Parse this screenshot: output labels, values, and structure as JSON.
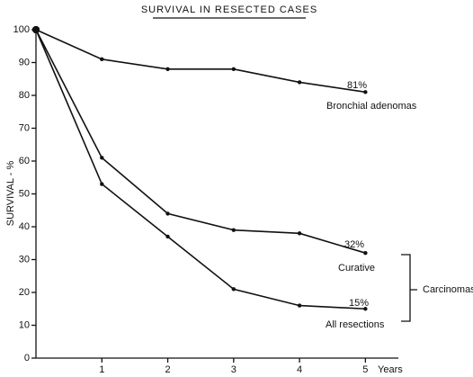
{
  "chart_data": {
    "type": "line",
    "title": "SURVIVAL IN RESECTED CASES",
    "y_label": "SURVIVAL - %",
    "x_label": "Years",
    "x": [
      0,
      1,
      2,
      3,
      4,
      5
    ],
    "xlim": [
      0,
      5.5
    ],
    "xticks": [
      1,
      2,
      3,
      4,
      5
    ],
    "ylim": [
      0,
      100
    ],
    "yticks": [
      0,
      10,
      20,
      30,
      40,
      50,
      60,
      70,
      80,
      90,
      100
    ],
    "series": [
      {
        "name": "Bronchial adenomas",
        "color": "#111111",
        "values": [
          100,
          91,
          88,
          88,
          84,
          81
        ],
        "value_labels": [
          null,
          null,
          null,
          null,
          null,
          "81%"
        ]
      },
      {
        "name": "Curative",
        "color": "#111111",
        "values": [
          100,
          61,
          44,
          39,
          38,
          32
        ],
        "value_labels": [
          null,
          null,
          null,
          null,
          null,
          "32%"
        ]
      },
      {
        "name": "All resections",
        "color": "#111111",
        "values": [
          100,
          53,
          37,
          21,
          16,
          15
        ],
        "value_labels": [
          null,
          null,
          null,
          null,
          null,
          "15%"
        ]
      }
    ],
    "annotations": [
      "Carcinomas"
    ]
  }
}
